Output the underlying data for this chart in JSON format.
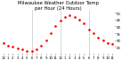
{
  "title": "Milwaukee Weather Outdoor Temp",
  "subtitle": "per Hour (24 Hours)",
  "hours": [
    0,
    1,
    2,
    3,
    4,
    5,
    6,
    7,
    8,
    9,
    10,
    11,
    12,
    13,
    14,
    15,
    16,
    17,
    18,
    19,
    20,
    21,
    22,
    23
  ],
  "temps": [
    28,
    26,
    25,
    24,
    23,
    22,
    22,
    23,
    26,
    30,
    35,
    40,
    44,
    47,
    48,
    47,
    45,
    42,
    38,
    35,
    32,
    30,
    28,
    27
  ],
  "line_color": "#ff0000",
  "bg_color": "#ffffff",
  "grid_color": "#999999",
  "ylim": [
    20,
    52
  ],
  "yticks": [
    25,
    30,
    35,
    40,
    45,
    50
  ],
  "ytick_labels": [
    "25",
    "30",
    "35",
    "40",
    "45",
    "50"
  ],
  "xtick_labels": [
    "12",
    "1",
    "2",
    "3",
    "4",
    "5",
    "6",
    "7",
    "8",
    "9",
    "10",
    "11",
    "12",
    "1",
    "2",
    "3",
    "4",
    "5",
    "6",
    "7",
    "8",
    "9",
    "10",
    "11"
  ],
  "vline_positions": [
    6,
    12,
    18
  ],
  "marker_size": 1.8,
  "title_fontsize": 3.8,
  "tick_fontsize": 2.8
}
